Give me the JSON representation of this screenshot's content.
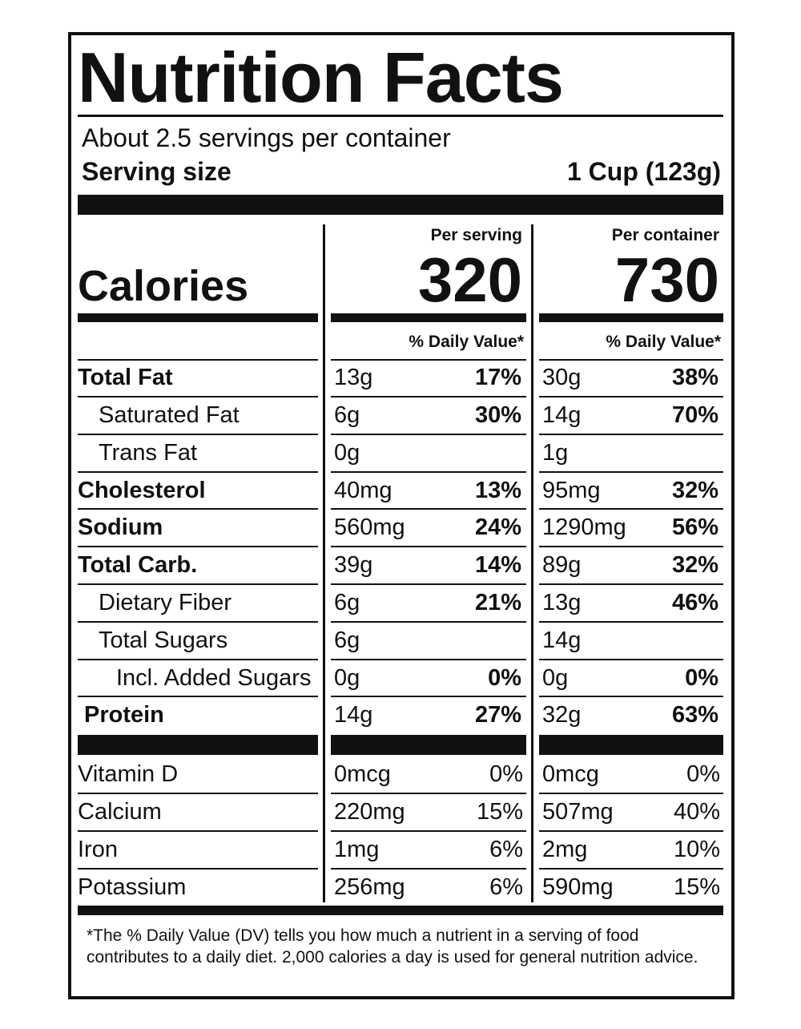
{
  "title": "Nutrition Facts",
  "servings": "About 2.5 servings per container",
  "serving_size": {
    "label": "Serving size",
    "value": "1 Cup (123g)"
  },
  "calories": {
    "label": "Calories",
    "columns": [
      {
        "header": "Per serving",
        "value": 320
      },
      {
        "header": "Per container",
        "value": 730
      }
    ]
  },
  "dv_header": "% Daily Value*",
  "nutrients": [
    {
      "name": "Total Fat",
      "serving": {
        "amount": "13g",
        "dv": "17%"
      },
      "container": {
        "amount": "30g",
        "dv": "38%"
      }
    },
    {
      "name": "Saturated Fat",
      "serving": {
        "amount": "6g",
        "dv": "30%"
      },
      "container": {
        "amount": "14g",
        "dv": "70%"
      }
    },
    {
      "name": "Trans Fat",
      "serving": {
        "amount": "0g"
      },
      "container": {
        "amount": "1g"
      }
    },
    {
      "name": "Cholesterol",
      "serving": {
        "amount": "40mg",
        "dv": "13%"
      },
      "container": {
        "amount": "95mg",
        "dv": "32%"
      }
    },
    {
      "name": "Sodium",
      "serving": {
        "amount": "560mg",
        "dv": "24%"
      },
      "container": {
        "amount": "1290mg",
        "dv": "56%"
      }
    },
    {
      "name": "Total Carb.",
      "serving": {
        "amount": "39g",
        "dv": "14%"
      },
      "container": {
        "amount": "89g",
        "dv": "32%"
      }
    },
    {
      "name": "Dietary Fiber",
      "serving": {
        "amount": "6g",
        "dv": "21%"
      },
      "container": {
        "amount": "13g",
        "dv": "46%"
      }
    },
    {
      "name": "Total Sugars",
      "serving": {
        "amount": "6g"
      },
      "container": {
        "amount": "14g"
      }
    },
    {
      "name": "Incl. Added Sugars",
      "serving": {
        "amount": "0g",
        "dv": "0%"
      },
      "container": {
        "amount": "0g",
        "dv": "0%"
      }
    },
    {
      "name": "Protein",
      "serving": {
        "amount": "14g",
        "dv": "27%"
      },
      "container": {
        "amount": "32g",
        "dv": "63%"
      }
    }
  ],
  "vitamins": [
    {
      "name": "Vitamin D",
      "serving": {
        "amount": "0mcg",
        "dv": "0%"
      },
      "container": {
        "amount": "0mcg",
        "dv": "0%"
      }
    },
    {
      "name": "Calcium",
      "serving": {
        "amount": "220mg",
        "dv": "15%"
      },
      "container": {
        "amount": "507mg",
        "dv": "40%"
      }
    },
    {
      "name": "Iron",
      "serving": {
        "amount": "1mg",
        "dv": "6%"
      },
      "container": {
        "amount": "2mg",
        "dv": "10%"
      }
    },
    {
      "name": "Potassium",
      "serving": {
        "amount": "256mg",
        "dv": "6%"
      },
      "container": {
        "amount": "590mg",
        "dv": "15%"
      }
    }
  ],
  "footnote": "*The % Daily Value (DV) tells you how much a nutrient in a serving of food contributes to a daily diet. 2,000 calories a day is used for general nutrition advice."
}
